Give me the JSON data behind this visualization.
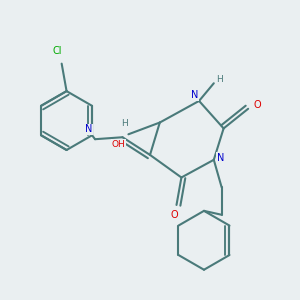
{
  "bg_color": "#eaeff1",
  "bond_color": "#4a7a7a",
  "atom_colors": {
    "N": "#0000cc",
    "O": "#dd0000",
    "Cl": "#00aa00",
    "C": "#4a7a7a",
    "H": "#4a7a7a"
  }
}
